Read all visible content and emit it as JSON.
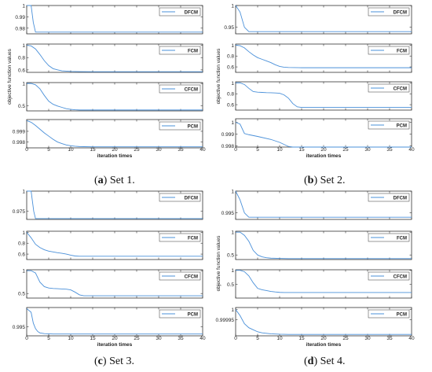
{
  "chart_data": [
    {
      "type": "line",
      "set_label": "a",
      "caption": "Set 1.",
      "ylabel": "objective function values",
      "xlabel": "iteration times",
      "xlim": [
        0,
        40
      ],
      "xticks": [
        0,
        5,
        10,
        15,
        20,
        25,
        30,
        35,
        40
      ],
      "color": "#4a90d9",
      "panels": [
        {
          "name": "DFCM",
          "ylim": [
            0.975,
            1.0
          ],
          "yticks": [
            "1",
            "0.99",
            "0.98"
          ],
          "x": [
            0,
            1,
            1.5,
            2,
            40
          ],
          "y": [
            1.0,
            1.0,
            0.985,
            0.9765,
            0.9765
          ]
        },
        {
          "name": "FCM",
          "ylim": [
            0.56,
            1.02
          ],
          "yticks": [
            "1",
            "0.8",
            "0.6"
          ],
          "x": [
            0,
            1,
            2,
            3,
            4,
            5,
            6,
            7,
            8,
            10,
            12,
            15,
            20,
            40
          ],
          "y": [
            1.0,
            0.99,
            0.94,
            0.85,
            0.75,
            0.67,
            0.62,
            0.6,
            0.585,
            0.575,
            0.572,
            0.571,
            0.57,
            0.57
          ]
        },
        {
          "name": "CFCM",
          "ylim": [
            0.38,
            1.02
          ],
          "yticks": [
            "1",
            "0.5"
          ],
          "x": [
            0,
            1,
            2,
            3,
            4,
            5,
            6,
            7,
            8,
            9,
            10,
            11,
            12,
            15,
            40
          ],
          "y": [
            1.0,
            1.0,
            0.97,
            0.88,
            0.73,
            0.6,
            0.53,
            0.49,
            0.46,
            0.43,
            0.415,
            0.405,
            0.4,
            0.4,
            0.4
          ]
        },
        {
          "name": "PCM",
          "ylim": [
            0.99745,
            1.0001
          ],
          "yticks": [
            "0.999",
            "0.998"
          ],
          "x": [
            0,
            1,
            2,
            3,
            4,
            5,
            6,
            7,
            8,
            9,
            10,
            11,
            12,
            13,
            15,
            20,
            40
          ],
          "y": [
            1.0,
            0.99985,
            0.99955,
            0.9992,
            0.99885,
            0.99855,
            0.99825,
            0.998,
            0.99785,
            0.99772,
            0.99765,
            0.9976,
            0.99757,
            0.99756,
            0.99755,
            0.99755,
            0.99755
          ]
        }
      ]
    },
    {
      "type": "line",
      "set_label": "b",
      "caption": "Set 2.",
      "ylabel": "objective function values",
      "xlabel": "iteration times",
      "xlim": [
        0,
        40
      ],
      "xticks": [
        0,
        5,
        10,
        15,
        20,
        25,
        30,
        35,
        40
      ],
      "color": "#4a90d9",
      "panels": [
        {
          "name": "DFCM",
          "ylim": [
            0.935,
            1.0
          ],
          "yticks": [
            "1",
            "0.95"
          ],
          "x": [
            0,
            1,
            2,
            3,
            40
          ],
          "y": [
            1.0,
            0.985,
            0.95,
            0.94,
            0.94
          ]
        },
        {
          "name": "FCM",
          "ylim": [
            0.5,
            1.02
          ],
          "yticks": [
            "1",
            "0.8",
            "0.6"
          ],
          "x": [
            0,
            1,
            2,
            3,
            4,
            5,
            6,
            7,
            8,
            9,
            10,
            11,
            12,
            15,
            20,
            40
          ],
          "y": [
            1.0,
            0.99,
            0.95,
            0.88,
            0.82,
            0.77,
            0.74,
            0.71,
            0.68,
            0.64,
            0.61,
            0.595,
            0.59,
            0.585,
            0.585,
            0.585
          ]
        },
        {
          "name": "CFCM",
          "ylim": [
            0.5,
            1.02
          ],
          "yticks": [
            "1",
            "0.8",
            "0.6"
          ],
          "x": [
            0,
            1,
            2,
            3,
            4,
            5,
            6,
            7,
            8,
            9,
            10,
            11,
            12,
            13,
            14,
            15,
            20,
            40
          ],
          "y": [
            1.0,
            1.0,
            0.97,
            0.9,
            0.84,
            0.83,
            0.825,
            0.82,
            0.818,
            0.815,
            0.81,
            0.78,
            0.72,
            0.62,
            0.56,
            0.55,
            0.55,
            0.55
          ]
        },
        {
          "name": "PCM",
          "ylim": [
            0.9979,
            1.0003
          ],
          "yticks": [
            "1",
            "0.999",
            "0.998"
          ],
          "x": [
            0,
            1,
            2,
            3,
            5,
            8,
            10,
            12,
            13,
            14,
            15,
            20,
            40
          ],
          "y": [
            1.0,
            0.99985,
            0.99905,
            0.99895,
            0.9988,
            0.99855,
            0.9983,
            0.99795,
            0.99775,
            0.99765,
            0.9976,
            0.9976,
            0.9976
          ]
        }
      ]
    },
    {
      "type": "line",
      "set_label": "c",
      "caption": "Set 3.",
      "ylabel": "",
      "xlabel": "iteration times",
      "xlim": [
        0,
        40
      ],
      "xticks": [
        0,
        5,
        10,
        15,
        20,
        25,
        30,
        35,
        40
      ],
      "color": "#4a90d9",
      "panels": [
        {
          "name": "DFCM",
          "ylim": [
            0.965,
            1.0
          ],
          "yticks": [
            "1",
            "0.975"
          ],
          "x": [
            0,
            1,
            1.6,
            2,
            40
          ],
          "y": [
            1.0,
            1.0,
            0.975,
            0.966,
            0.966
          ]
        },
        {
          "name": "FCM",
          "ylim": [
            0.5,
            1.02
          ],
          "yticks": [
            "1",
            "0.8",
            "0.6"
          ],
          "x": [
            0,
            1,
            2,
            3,
            4,
            5,
            6,
            7,
            8,
            9,
            10,
            11,
            12,
            15,
            20,
            40
          ],
          "y": [
            1.0,
            0.9,
            0.78,
            0.72,
            0.68,
            0.655,
            0.64,
            0.625,
            0.615,
            0.6,
            0.58,
            0.565,
            0.56,
            0.56,
            0.56,
            0.56
          ]
        },
        {
          "name": "CFCM",
          "ylim": [
            0.4,
            1.02
          ],
          "yticks": [
            "1",
            "0.5"
          ],
          "x": [
            0,
            1,
            2,
            3,
            4,
            5,
            6,
            7,
            8,
            9,
            10,
            11,
            12,
            13,
            15,
            40
          ],
          "y": [
            1.0,
            1.0,
            0.95,
            0.75,
            0.65,
            0.62,
            0.61,
            0.605,
            0.6,
            0.595,
            0.58,
            0.53,
            0.47,
            0.45,
            0.45,
            0.45
          ]
        },
        {
          "name": "PCM",
          "ylim": [
            0.9925,
            1.0003
          ],
          "yticks": [
            "0.995"
          ],
          "x": [
            0,
            1,
            1.5,
            2,
            2.5,
            3,
            4,
            6,
            8,
            10,
            40
          ],
          "y": [
            1.0,
            0.999,
            0.996,
            0.9945,
            0.9937,
            0.9933,
            0.9931,
            0.993,
            0.993,
            0.993,
            0.993
          ]
        }
      ]
    },
    {
      "type": "line",
      "set_label": "d",
      "caption": "Set 4.",
      "ylabel": "objective function values",
      "xlabel": "iteration times",
      "xlim": [
        0,
        40
      ],
      "xticks": [
        0,
        5,
        10,
        15,
        20,
        25,
        30,
        35,
        40
      ],
      "color": "#4a90d9",
      "panels": [
        {
          "name": "DFCM",
          "ylim": [
            0.9935,
            1.0
          ],
          "yticks": [
            "1",
            "0.995"
          ],
          "x": [
            0,
            1,
            2,
            3,
            40
          ],
          "y": [
            1.0,
            0.998,
            0.995,
            0.994,
            0.994
          ]
        },
        {
          "name": "FCM",
          "ylim": [
            0.4,
            1.02
          ],
          "yticks": [
            "1",
            "0.5"
          ],
          "x": [
            0,
            1,
            2,
            3,
            4,
            5,
            6,
            7,
            8,
            10,
            12,
            15,
            20,
            40
          ],
          "y": [
            1.0,
            1.0,
            0.93,
            0.8,
            0.6,
            0.5,
            0.46,
            0.44,
            0.43,
            0.425,
            0.42,
            0.42,
            0.42,
            0.42
          ]
        },
        {
          "name": "CFCM",
          "ylim": [
            0.0,
            1.02
          ],
          "yticks": [
            "1",
            "0.5"
          ],
          "x": [
            0,
            1,
            2,
            3,
            4,
            5,
            6,
            7,
            8,
            9,
            10,
            11,
            12,
            15,
            40
          ],
          "y": [
            1.0,
            1.0,
            0.95,
            0.8,
            0.55,
            0.35,
            0.3,
            0.27,
            0.24,
            0.22,
            0.205,
            0.2,
            0.2,
            0.2,
            0.2
          ]
        },
        {
          "name": "PCM",
          "ylim": [
            0.99987,
            1.00001
          ],
          "yticks": [
            "1",
            "0.99995"
          ],
          "x": [
            0,
            1,
            2,
            3,
            4,
            5,
            6,
            8,
            10,
            12,
            15,
            20,
            40
          ],
          "y": [
            1.0,
            0.99997,
            0.99993,
            0.99991,
            0.9999,
            0.99989,
            0.999885,
            0.99988,
            0.999878,
            0.999877,
            0.999877,
            0.999877,
            0.999877
          ]
        }
      ]
    }
  ]
}
